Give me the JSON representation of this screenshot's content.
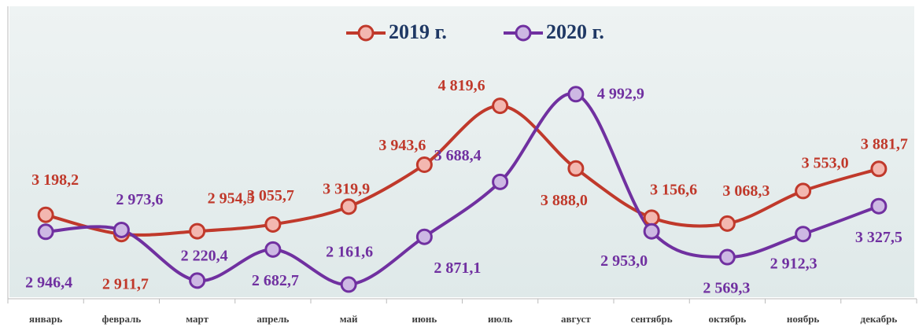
{
  "chart_data": {
    "type": "line",
    "categories": [
      "январь",
      "февраль",
      "март",
      "апрель",
      "май",
      "июнь",
      "июль",
      "август",
      "сентябрь",
      "октябрь",
      "ноябрь",
      "декабрь"
    ],
    "series": [
      {
        "name": "2019 г.",
        "color": "#c0392b",
        "values": [
          3198.2,
          2911.7,
          2954.5,
          3055.7,
          3319.9,
          3943.6,
          4819.6,
          3888.0,
          3156.6,
          3068.3,
          3553.0,
          3881.7
        ],
        "value_labels": [
          "3 198,2",
          "2 911,7",
          "2 954,5",
          "3 055,7",
          "3 319,9",
          "3 943,6",
          "4 819,6",
          "3 888,0",
          "3 156,6",
          "3 068,3",
          "3 553,0",
          "3 881,7"
        ]
      },
      {
        "name": "2020 г.",
        "color": "#7030a0",
        "values": [
          2946.4,
          2973.6,
          2220.4,
          2682.7,
          2161.6,
          2871.1,
          3688.4,
          4992.9,
          2953.0,
          2569.3,
          2912.3,
          3327.5
        ],
        "value_labels": [
          "2 946,4",
          "2 973,6",
          "2 220,4",
          "2 682,7",
          "2 161,6",
          "2 871,1",
          "3 688,4",
          "4 992,9",
          "2 953,0",
          "2 569,3",
          "2 912,3",
          "3 327,5"
        ]
      }
    ],
    "ylim": [
      1950,
      6300
    ],
    "legend": "top"
  }
}
